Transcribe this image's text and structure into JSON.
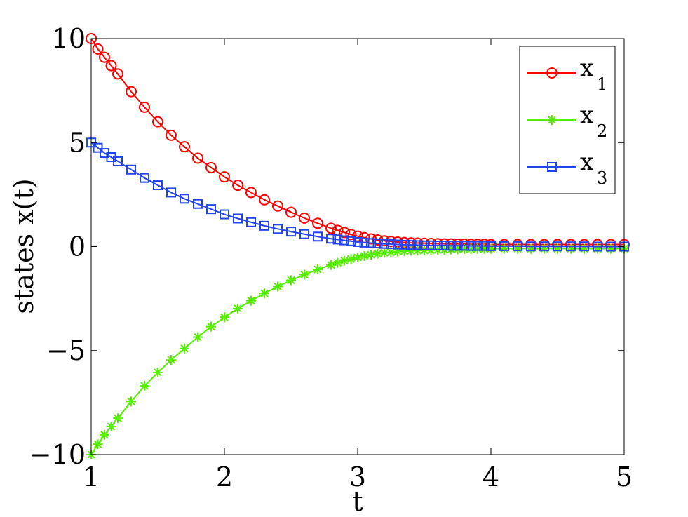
{
  "chart_data": {
    "type": "line",
    "title": "",
    "xlabel": "t",
    "ylabel": "states x(t)",
    "xlim": [
      1,
      5
    ],
    "ylim": [
      -10,
      10
    ],
    "xticks": [
      1,
      2,
      3,
      4,
      5
    ],
    "xtick_labels": [
      "1",
      "2",
      "3",
      "4",
      "5"
    ],
    "yticks": [
      -10,
      -5,
      0,
      5,
      10
    ],
    "ytick_labels": [
      "−10",
      "−5",
      "0",
      "5",
      "10"
    ],
    "grid": false,
    "legend_position": "top-right",
    "x": [
      1.0,
      1.05,
      1.1,
      1.15,
      1.2,
      1.3,
      1.4,
      1.5,
      1.6,
      1.7,
      1.8,
      1.9,
      2.0,
      2.1,
      2.2,
      2.3,
      2.4,
      2.5,
      2.6,
      2.7,
      2.8,
      2.85,
      2.9,
      2.95,
      3.0,
      3.05,
      3.1,
      3.15,
      3.2,
      3.25,
      3.3,
      3.35,
      3.4,
      3.45,
      3.5,
      3.55,
      3.6,
      3.65,
      3.7,
      3.75,
      3.8,
      3.85,
      3.9,
      3.95,
      4.0,
      4.1,
      4.2,
      4.3,
      4.4,
      4.5,
      4.6,
      4.7,
      4.8,
      4.9,
      5.0
    ],
    "series": [
      {
        "name": "x",
        "subscript": "1",
        "color": "#ff0000",
        "marker": "circle",
        "values": [
          10.0,
          9.5,
          9.1,
          8.7,
          8.3,
          7.45,
          6.7,
          6.0,
          5.35,
          4.8,
          4.25,
          3.8,
          3.35,
          2.95,
          2.6,
          2.25,
          1.95,
          1.65,
          1.37,
          1.12,
          0.88,
          0.78,
          0.68,
          0.58,
          0.5,
          0.43,
          0.37,
          0.32,
          0.28,
          0.25,
          0.22,
          0.2,
          0.18,
          0.17,
          0.16,
          0.15,
          0.14,
          0.13,
          0.13,
          0.12,
          0.12,
          0.11,
          0.11,
          0.11,
          0.1,
          0.1,
          0.1,
          0.1,
          0.1,
          0.1,
          0.1,
          0.1,
          0.1,
          0.1,
          0.1
        ]
      },
      {
        "name": "x",
        "subscript": "2",
        "color": "#55ee00",
        "marker": "star",
        "values": [
          -10.0,
          -9.5,
          -9.05,
          -8.65,
          -8.25,
          -7.45,
          -6.7,
          -6.05,
          -5.45,
          -4.9,
          -4.35,
          -3.85,
          -3.4,
          -2.98,
          -2.6,
          -2.25,
          -1.92,
          -1.62,
          -1.35,
          -1.1,
          -0.88,
          -0.78,
          -0.68,
          -0.6,
          -0.52,
          -0.45,
          -0.39,
          -0.34,
          -0.3,
          -0.27,
          -0.24,
          -0.22,
          -0.2,
          -0.19,
          -0.18,
          -0.17,
          -0.16,
          -0.15,
          -0.14,
          -0.13,
          -0.12,
          -0.12,
          -0.11,
          -0.11,
          -0.1,
          -0.1,
          -0.1,
          -0.1,
          -0.1,
          -0.1,
          -0.1,
          -0.1,
          -0.1,
          -0.1,
          -0.1
        ]
      },
      {
        "name": "x",
        "subscript": "3",
        "color": "#2244ee",
        "marker": "square",
        "values": [
          5.0,
          4.75,
          4.5,
          4.3,
          4.1,
          3.7,
          3.3,
          2.95,
          2.6,
          2.3,
          2.05,
          1.8,
          1.55,
          1.35,
          1.17,
          1.0,
          0.85,
          0.72,
          0.6,
          0.48,
          0.38,
          0.34,
          0.3,
          0.26,
          0.22,
          0.19,
          0.17,
          0.15,
          0.13,
          0.12,
          0.1,
          0.09,
          0.08,
          0.07,
          0.06,
          0.06,
          0.05,
          0.05,
          0.04,
          0.04,
          0.04,
          0.03,
          0.03,
          0.03,
          0.02,
          0.02,
          0.02,
          0.01,
          0.01,
          0.01,
          0.01,
          0.01,
          0.0,
          0.0,
          0.0
        ]
      }
    ]
  }
}
